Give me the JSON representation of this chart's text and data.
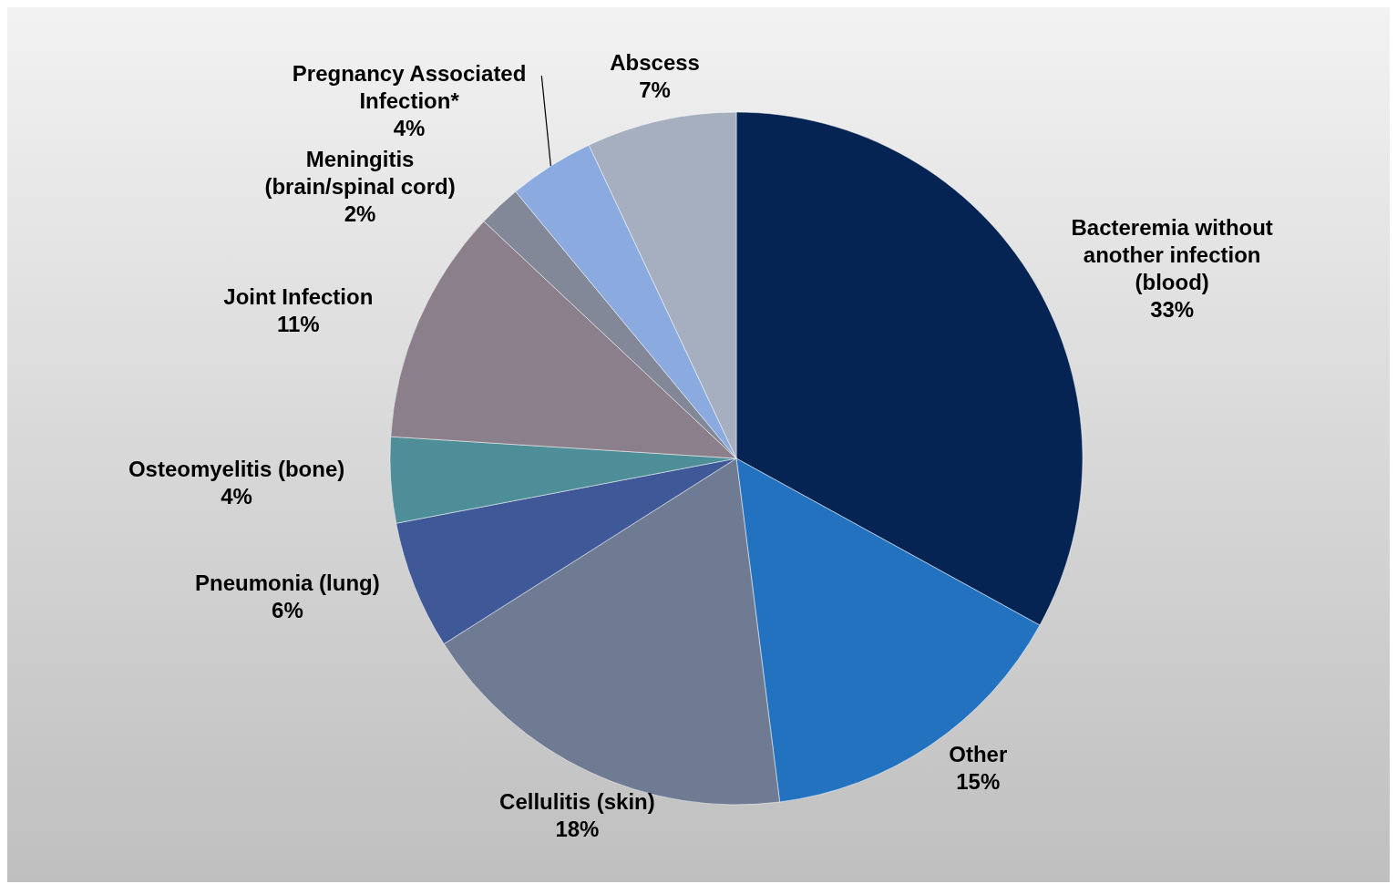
{
  "chart_data": {
    "type": "pie",
    "categories": [
      "Bacteremia without another infection (blood)",
      "Other",
      "Cellulitis (skin)",
      "Pneumonia (lung)",
      "Osteomyelitis (bone)",
      "Joint Infection",
      "Meningitis (brain/spinal cord)",
      "Pregnancy Associated Infection*",
      "Abscess"
    ],
    "values": [
      33,
      15,
      18,
      6,
      4,
      11,
      2,
      4,
      7
    ],
    "value_labels": [
      "33%",
      "15%",
      "18%",
      "6%",
      "4%",
      "11%",
      "2%",
      "4%",
      "7%"
    ],
    "colors": [
      "#052454",
      "#2372c0",
      "#6e7b93",
      "#3e5898",
      "#4e8e98",
      "#8b7f8c",
      "#828898",
      "#8aaae0",
      "#a6afc0"
    ],
    "legend": false
  }
}
